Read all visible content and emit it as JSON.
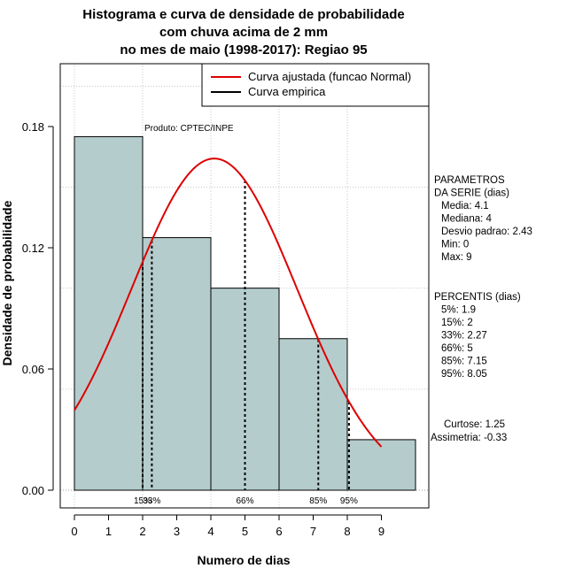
{
  "chart_data": {
    "type": "bar",
    "title": [
      "Histograma e curva de densidade de probabilidade",
      "com chuva acima de 2 mm",
      "no mes de maio (1998-2017): Regiao 95"
    ],
    "xlabel": "Numero de dias",
    "ylabel": "Densidade de probabilidade",
    "xlim": [
      -0.3,
      10.5
    ],
    "ylim": [
      0.0,
      0.205
    ],
    "x_ticks": [
      0,
      1,
      2,
      3,
      4,
      5,
      6,
      7,
      8,
      9
    ],
    "y_ticks": [
      0.0,
      0.06,
      0.12,
      0.18
    ],
    "y_tick_labels": [
      "0.00",
      "0.06",
      "0.12",
      "0.18"
    ],
    "bins": [
      {
        "x0": 0,
        "x1": 2,
        "density": 0.175
      },
      {
        "x0": 2,
        "x1": 4,
        "density": 0.125
      },
      {
        "x0": 4,
        "x1": 6,
        "density": 0.1
      },
      {
        "x0": 6,
        "x1": 8,
        "density": 0.075
      },
      {
        "x0": 8,
        "x1": 10,
        "density": 0.025
      }
    ],
    "bar_color": "#b5cccc",
    "normal_curve": {
      "name": "Curva ajustada (funcao Normal)",
      "color": "#dd0000",
      "mean": 4.1,
      "sd": 2.43,
      "x_range": [
        0,
        9
      ]
    },
    "percentile_lines": [
      {
        "x": 2.0,
        "label": "15%"
      },
      {
        "x": 2.27,
        "label": "33%"
      },
      {
        "x": 5.0,
        "label": "66%"
      },
      {
        "x": 7.15,
        "label": "85%"
      },
      {
        "x": 8.05,
        "label": "95%"
      }
    ],
    "legend": [
      {
        "label": "Curva ajustada (funcao Normal)",
        "color": "#dd0000"
      },
      {
        "label": "Curva empirica",
        "color": "#000000"
      }
    ],
    "legend_position": "top-right",
    "annotation": "Produto: CPTEC/INPE",
    "grid": true
  },
  "side_panel": {
    "parametros": [
      "PARAMETROS",
      "DA SERIE (dias)",
      "Media: 4.1",
      "Mediana: 4",
      "Desvio padrao: 2.43",
      "Min: 0",
      "Max: 9"
    ],
    "percentis": [
      "PERCENTIS (dias)",
      "5%: 1.9",
      "15%: 2",
      "33%: 2.27",
      "66%: 5",
      "85%: 7.15",
      "95%: 8.05"
    ],
    "shape": [
      "Curtose: 1.25",
      "Assimetria: -0.33"
    ]
  }
}
